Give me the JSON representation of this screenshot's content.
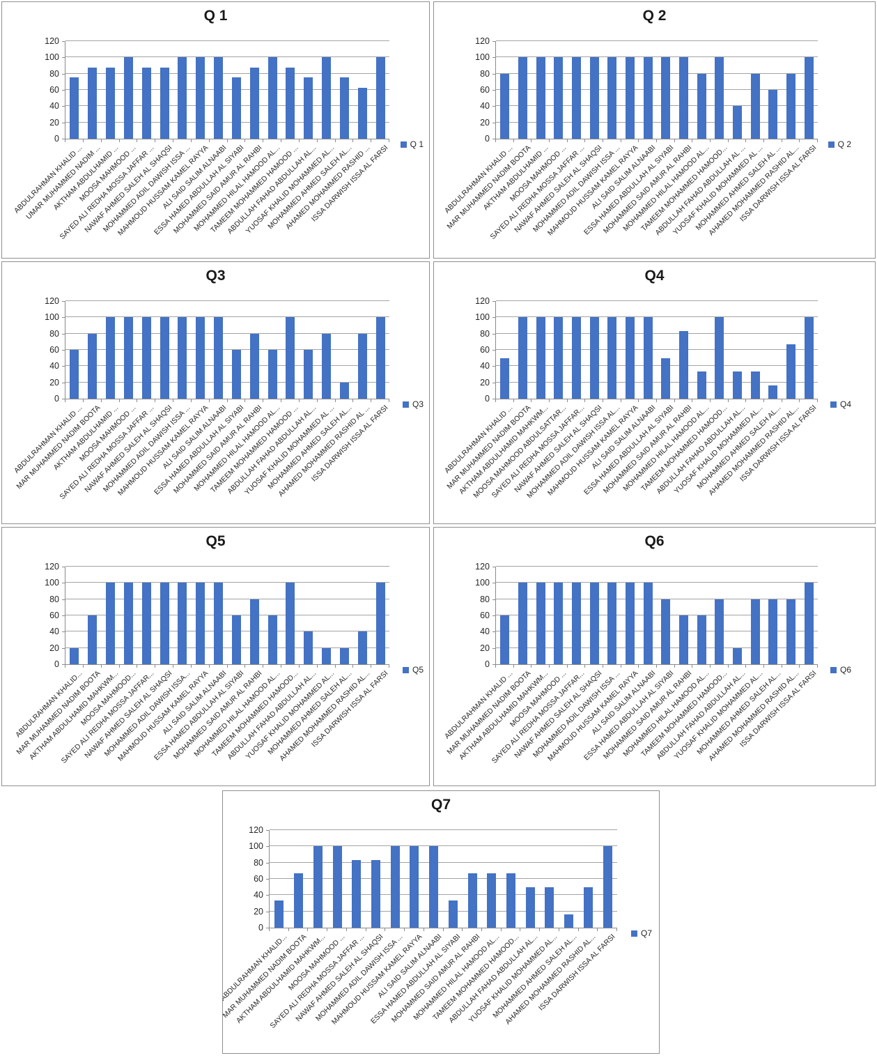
{
  "colors": {
    "bar": "#4472C4",
    "gridline": "#A3A3A3",
    "axis": "#8A8A8A",
    "panel_border": "#8F8F8F",
    "title_text": "#1A1A1A",
    "tick_text": "#262626",
    "background": "#FFFFFF"
  },
  "chart_data": [
    {
      "type": "bar",
      "title": "Q 1",
      "legend_label": "Q 1",
      "legend_position": "right",
      "grid": true,
      "ylim": [
        0,
        120
      ],
      "yticks": [
        0,
        20,
        40,
        60,
        80,
        100,
        120
      ],
      "categories": [
        "ABDULRAHMAN KHALID ...",
        "UMAR MUHAMMED NADIM ...",
        "AKTHAM ABDULHAMID ...",
        "MOOSA MAHMOOD ...",
        "SAYED ALI REDHA MOSSA JAFFAR ...",
        "NAWAF AHMED SALEH AL SHAQSI",
        "MOHAMMED ADIL DAWISH ISSA ...",
        "MAHMOUD HUSSAM KAMEL RAYYA",
        "ALI SAID SALIM ALNAABI",
        "ESSA HAMED ABDULLAH AL SIYABI",
        "MOHAMMED SAID AMUR AL RAHBI",
        "MOHAMMED HILAL HAMOOD AL...",
        "TAMEEM MOHAMMED HAMOOD ...",
        "ABDULLAH FAHAD ABDULLAH AL...",
        "YUOSAF KHALID MOHAMMED AL...",
        "MOHAMMED AHMED SALEH AL...",
        "AHAMED MOHAMMED RASHID ...",
        "ISSA DARWISH ISSA AL FARSI"
      ],
      "values": [
        75,
        87.5,
        87.5,
        100,
        87.5,
        87.5,
        100,
        100,
        100,
        75,
        87.5,
        100,
        87.5,
        75,
        100,
        75,
        62.5,
        100
      ]
    },
    {
      "type": "bar",
      "title": "Q 2",
      "legend_label": "Q 2",
      "legend_position": "right",
      "grid": true,
      "ylim": [
        0,
        120
      ],
      "yticks": [
        0,
        20,
        40,
        60,
        80,
        100,
        120
      ],
      "categories": [
        "ABDULRAHMAN KHALID ...",
        "MAR MUHAMMED NADIM BOOTA",
        "AKTHAM ABDULHAMID ...",
        "MOOSA MAHMOOD ...",
        "SAYED ALI REDHA MOSSA JAFFAR ...",
        "NAWAF AHMED SALEH AL SHAQSI",
        "MOHAMMED ADIL DAWISH ISSA ...",
        "MAHMOUD HUSSAM KAMEL RAYYA",
        "ALI SAID SALIM ALNAABI",
        "ESSA HAMED ABDULLAH AL SIYABI",
        "MOHAMMED SAID AMUR AL RAHBI",
        "MOHAMMED HILAL HAMOOD AL...",
        "TAMEEM MOHAMMED HAMOOD...",
        "ABDULLAH FAHAD ABDULLAH AL ...",
        "YUOSAF KHALID MOHAMMED AL ...",
        "MOHAMMED AHMED SALEH AL ...",
        "AHAMED MOHAMMED RASHID AL...",
        "ISSA DARWISH ISSA AL FARSI"
      ],
      "values": [
        80,
        100,
        100,
        100,
        100,
        100,
        100,
        100,
        100,
        100,
        100,
        80,
        100,
        40,
        80,
        60,
        80,
        100
      ]
    },
    {
      "type": "bar",
      "title": "Q3",
      "legend_label": "Q3",
      "legend_position": "right",
      "grid": true,
      "ylim": [
        0,
        120
      ],
      "yticks": [
        0,
        20,
        40,
        60,
        80,
        100,
        120
      ],
      "categories": [
        "ABDULRAHMAN KHALID ...",
        "MAR MUHAMMED NADIM BOOTA",
        "AKTHAM ABDULHAMID ...",
        "MOOSA MAHMOOD ...",
        "SAYED ALI REDHA MOSSA JAFFAR ...",
        "NAWAF AHMED SALEH AL SHAQSI",
        "MOHAMMED ADIL DAWISH ISSA ...",
        "MAHMOUD HUSSAM KAMEL RAYYA",
        "ALI SAID SALIM ALNAABI",
        "ESSA HAMED ABDULLAH AL SIYABI",
        "MOHAMMED SAID AMUR AL RAHBI",
        "MOHAMMED HILAL HAMOOD AL...",
        "TAMEEM MOHAMMED HAMOOD ...",
        "ABDULLAH FAHAD ABDULLAH AL...",
        "YUOSAF KHALID MOHAMMED AL ...",
        "MOHAMMED AHMED SALEH AL...",
        "AHAMED MOHAMMED RASHID AL ...",
        "ISSA DARWISH ISSA AL FARSI"
      ],
      "values": [
        60,
        80,
        100,
        100,
        100,
        100,
        100,
        100,
        100,
        60,
        80,
        60,
        100,
        60,
        80,
        20,
        80,
        100
      ]
    },
    {
      "type": "bar",
      "title": "Q4",
      "legend_label": "Q4",
      "legend_position": "right",
      "grid": true,
      "ylim": [
        0,
        120
      ],
      "yticks": [
        0,
        20,
        40,
        60,
        80,
        100,
        120
      ],
      "categories": [
        "ABDULRAHMAN KHALID ...",
        "MAR MUHAMMED NADIM BOOTA",
        "AKTHAM ABDULHAMID MAHKWM...",
        "MOOSA MAHMOOD ABDULSATTAR...",
        "SAYED ALI REDHA MOSSA JAFFAR...",
        "NAWAF AHMED SALEH AL SHAQSI",
        "MOHAMMED ADIL DAWISH ISSA AL...",
        "MAHMOUD HUSSAM KAMEL RAYYA",
        "ALI SAID SALIM ALNAABI",
        "ESSA HAMED ABDULLAH AL SIYABI",
        "MOHAMMED SAID AMUR AL RAHBI",
        "MOHAMMED HILAL HAMOOD AL...",
        "TAMEEM MOHAMMED HAMOOD...",
        "ABDULLAH FAHAD ABDULLAH AL...",
        "YUOSAF KHALID MOHAMMED AL...",
        "MOHAMMED AHMED SALEH AL...",
        "AHAMED MOHAMMED RASHID AL...",
        "ISSA DARWISH ISSA AL FARSI"
      ],
      "values": [
        50,
        100,
        100,
        100,
        100,
        100,
        100,
        100,
        100,
        50,
        83.3,
        33.3,
        100,
        33.3,
        33.3,
        16.7,
        66.7,
        100
      ]
    },
    {
      "type": "bar",
      "title": "Q5",
      "legend_label": "Q5",
      "legend_position": "right",
      "grid": true,
      "ylim": [
        0,
        120
      ],
      "yticks": [
        0,
        20,
        40,
        60,
        80,
        100,
        120
      ],
      "categories": [
        "ABDULRAHMAN KHALID...",
        "MAR MUHAMMED NADIM BOOTA",
        "AKTHAM ABDULHAMID MAHKWM...",
        "MOOSA MAHMOOD...",
        "SAYED ALI REDHA MOSSA JAFFAR...",
        "NAWAF AHMED SALEH AL SHAQSI",
        "MOHAMMED ADIL DAWISH ISSA...",
        "MAHMOUD HUSSAM KAMEL RAYYA",
        "ALI SAID SALIM ALNAABI",
        "ESSA HAMED ABDULLAH AL SIYABI",
        "MOHAMMED SAID AMUR AL RAHBI",
        "MOHAMMED HILAL HAMOOD AL...",
        "TAMEEM MOHAMMED HAMOOD...",
        "ABDULLAH FAHAD ABDULLAH AL...",
        "YUOSAF KHALID MOHAMMED AL...",
        "MOHAMMED AHMED SALEH AL...",
        "AHAMED MOHAMMED RASHID AL...",
        "ISSA DARWISH ISSA AL FARSI"
      ],
      "values": [
        20,
        60,
        100,
        100,
        100,
        100,
        100,
        100,
        100,
        60,
        80,
        60,
        100,
        40,
        20,
        20,
        40,
        100
      ]
    },
    {
      "type": "bar",
      "title": "Q6",
      "legend_label": "Q6",
      "legend_position": "right",
      "grid": true,
      "ylim": [
        0,
        120
      ],
      "yticks": [
        0,
        20,
        40,
        60,
        80,
        100,
        120
      ],
      "categories": [
        "ABDULRAHMAN KHALID ...",
        "MAR MUHAMMED NADIM BOOTA",
        "AKTHAM ABDULHAMID MAHKWM...",
        "MOOSA MAHMOOD ...",
        "SAYED ALI REDHA MOSSA JAFFAR...",
        "NAWAF AHMED SALEH AL SHAQSI",
        "MOHAMMED ADIL DAWISH ISSA ...",
        "MAHMOUD HUSSAM KAMEL RAYYA",
        "ALI SAID SALIM ALNAABI",
        "ESSA HAMED ABDULLAH AL SIYABI",
        "MOHAMMED SAID AMUR AL RAHBI",
        "MOHAMMED HILAL HAMOOD AL...",
        "TAMEEM MOHAMMED HAMOOD...",
        "ABDULLAH FAHAD ABDULLAH AL...",
        "YUOSAF KHALID MOHAMMED AL...",
        "MOHAMMED AHMED SALEH AL...",
        "AHAMED MOHAMMED RASHID AL...",
        "ISSA DARWISH ISSA AL FARSI"
      ],
      "values": [
        60,
        100,
        100,
        100,
        100,
        100,
        100,
        100,
        100,
        80,
        60,
        60,
        80,
        20,
        80,
        80,
        80,
        100
      ]
    },
    {
      "type": "bar",
      "title": "Q7",
      "legend_label": "Q7",
      "legend_position": "right",
      "grid": true,
      "ylim": [
        0,
        120
      ],
      "yticks": [
        0,
        20,
        40,
        60,
        80,
        100,
        120
      ],
      "categories": [
        "ABDULRAHMAN KHALID...",
        "MAR MUHAMMED NADIM BOOTA",
        "AKTHAM ABDULHAMID MAHKWM...",
        "MOOSA MAHMOOD ...",
        "SAYED ALI REDHA MOSSA JAFFAR ...",
        "NAWAF AHMED SALEH AL SHAQSI",
        "MOHAMMED ADIL DAWISH ISSA ...",
        "MAHMOUD HUSSAM KAMEL RAYYA",
        "ALI SAID SALIM ALNAABI",
        "ESSA HAMED ABDULLAH AL SIYABI",
        "MOHAMMED SAID AMUR AL RAHBI",
        "MOHAMMED HILAL HAMOOD AL...",
        "TAMEEM MOHAMMED HAMOOD...",
        "ABDULLAH FAHAD ABDULLAH AL...",
        "YUOSAF KHALID MOHAMMED AL...",
        "MOHAMMED AHMED SALEH AL...",
        "AHAMED MOHAMMED RASHID AL...",
        "ISSA DARWISH ISSA AL FARSI"
      ],
      "values": [
        33.3,
        66.7,
        100,
        100,
        83.3,
        83.3,
        100,
        100,
        100,
        33.3,
        66.7,
        66.7,
        66.7,
        50,
        50,
        16.7,
        50,
        100
      ]
    }
  ]
}
